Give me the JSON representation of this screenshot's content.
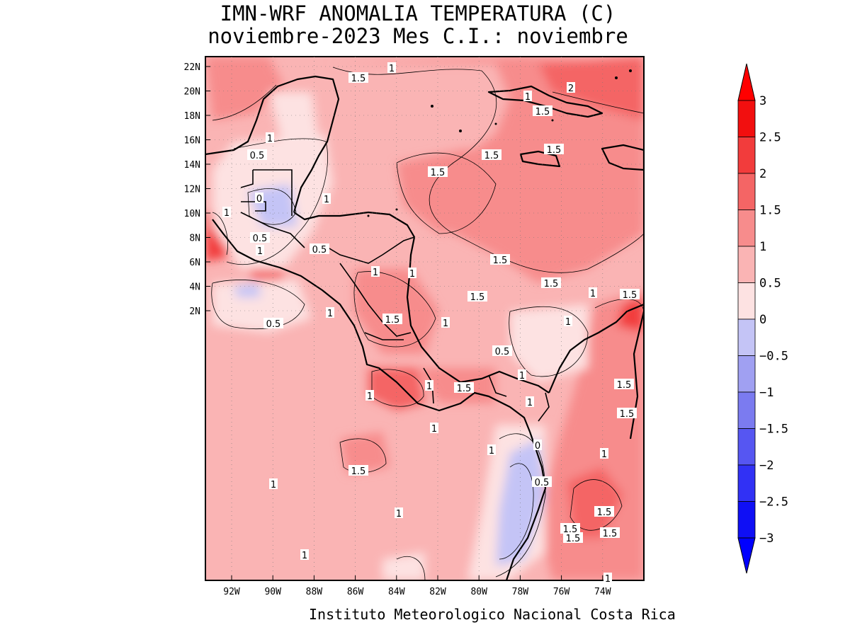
{
  "title_line1": "IMN-WRF  ANOMALIA TEMPERATURA (C)",
  "title_line2": "noviembre-2023 Mes C.I.: noviembre",
  "credit": "Instituto Meteorologico Nacional Costa Rica",
  "lat_labels": [
    "22N",
    "20N",
    "18N",
    "16N",
    "14N",
    "12N",
    "10N",
    "8N",
    "6N",
    "4N",
    "2N"
  ],
  "lon_labels": [
    "92W",
    "90W",
    "88W",
    "86W",
    "84W",
    "82W",
    "80W",
    "78W",
    "76W",
    "74W"
  ],
  "colorbar": {
    "labels": [
      "3",
      "2.5",
      "2",
      "1.5",
      "1",
      "0.5",
      "0",
      "−0.5",
      "−1",
      "−1.5",
      "−2",
      "−2.5",
      "−3"
    ],
    "colors": [
      "#f20f0f",
      "#f23c3c",
      "#f46565",
      "#f78c8c",
      "#fab4b4",
      "#fde2e2",
      "#e8e8fb",
      "#c4c4f6",
      "#a0a0f2",
      "#7b7bf0",
      "#5656f2",
      "#3131f5",
      "#0f0ff5"
    ],
    "over_color": "#ff0000",
    "under_color": "#0000ff"
  },
  "contour_labels": [
    {
      "text": "1.5"
    },
    {
      "text": "1"
    },
    {
      "text": "1"
    },
    {
      "text": "2"
    },
    {
      "text": "1.5"
    },
    {
      "text": "1.5"
    },
    {
      "text": "1.5"
    },
    {
      "text": "1.5"
    },
    {
      "text": "1"
    },
    {
      "text": "0.5"
    },
    {
      "text": "1"
    },
    {
      "text": "0"
    },
    {
      "text": "1"
    },
    {
      "text": "0.5"
    },
    {
      "text": "1"
    },
    {
      "text": "0.5"
    },
    {
      "text": "1.5"
    },
    {
      "text": "1"
    },
    {
      "text": "1"
    },
    {
      "text": "1.5"
    },
    {
      "text": "1.5"
    },
    {
      "text": "1"
    },
    {
      "text": "1.5"
    },
    {
      "text": "1"
    },
    {
      "text": "0.5"
    },
    {
      "text": "1"
    },
    {
      "text": "1.5"
    },
    {
      "text": "1"
    },
    {
      "text": "0.5"
    },
    {
      "text": "1"
    },
    {
      "text": "1"
    },
    {
      "text": "1.5"
    },
    {
      "text": "1.5"
    },
    {
      "text": "1.5"
    },
    {
      "text": "1"
    },
    {
      "text": "1.5"
    },
    {
      "text": "1"
    },
    {
      "text": "0"
    },
    {
      "text": "1"
    },
    {
      "text": "0.5"
    },
    {
      "text": "1"
    },
    {
      "text": "1.5"
    },
    {
      "text": "1"
    },
    {
      "text": "1"
    },
    {
      "text": "1"
    },
    {
      "text": "1.5"
    },
    {
      "text": "1.5"
    },
    {
      "text": "1.5"
    },
    {
      "text": "1"
    },
    {
      "text": "1"
    }
  ]
}
